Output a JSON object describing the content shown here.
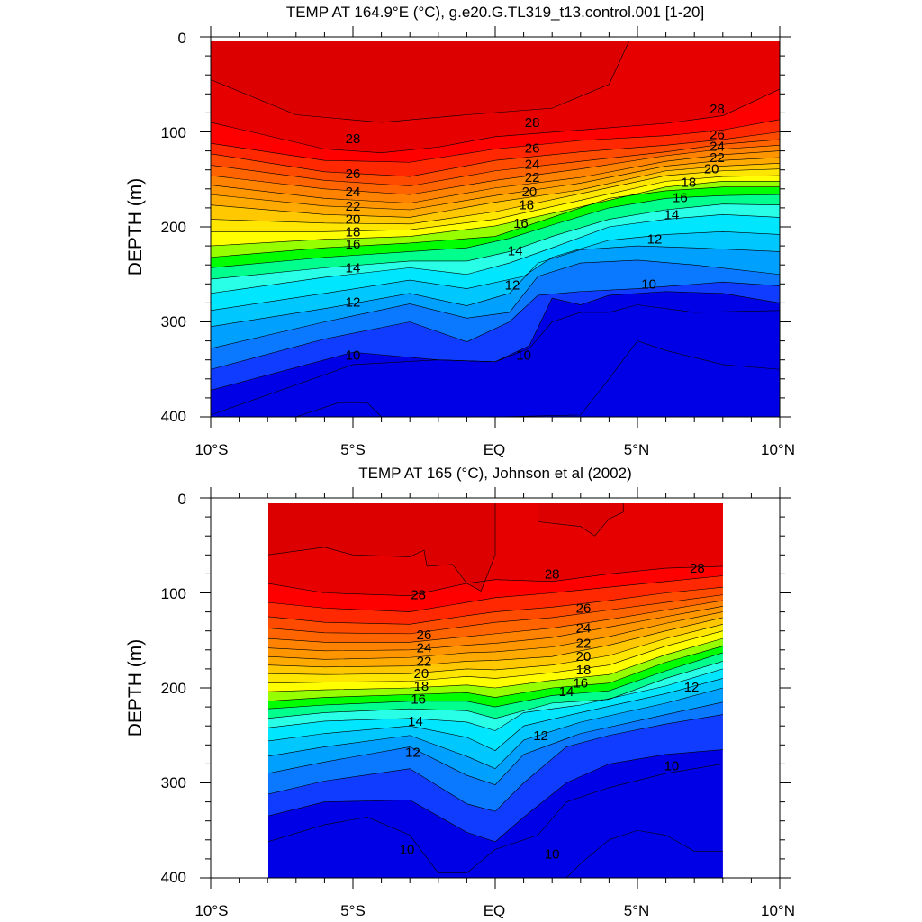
{
  "panels": [
    {
      "title": "TEMP AT 164.9°E (°C), g.e20.G.TL319_t13.control.001 [1-20]",
      "ylabel": "DEPTH (m)",
      "x_ticks": [
        "10°S",
        "5°S",
        "EQ",
        "5°N",
        "10°N"
      ],
      "y_ticks": [
        "0",
        "100",
        "200",
        "300",
        "400"
      ]
    },
    {
      "title": "TEMP AT 165 (°C), Johnson et al (2002)",
      "ylabel": "DEPTH (m)",
      "x_ticks": [
        "10°S",
        "5°S",
        "EQ",
        "5°N",
        "10°N"
      ],
      "y_ticks": [
        "0",
        "100",
        "200",
        "300",
        "400"
      ]
    }
  ],
  "chart_data": [
    {
      "type": "heatmap",
      "title": "TEMP AT 164.9°E (°C), g.e20.G.TL319_t13.control.001 [1-20]",
      "ylabel": "DEPTH (m)",
      "xlim": [
        -10,
        10
      ],
      "ylim": [
        400,
        0
      ],
      "x_tick_values": [
        -10,
        -5,
        0,
        5,
        10
      ],
      "y_tick_values": [
        0,
        100,
        200,
        300,
        400
      ],
      "data_extent_x": [
        -10,
        10
      ],
      "data_extent_y": [
        5,
        400
      ],
      "contour_levels": [
        9,
        10,
        11,
        12,
        13,
        14,
        15,
        16,
        17,
        18,
        19,
        20,
        21,
        22,
        23,
        24,
        25,
        26,
        27,
        28,
        29
      ],
      "color_fills": [
        "#0000e6",
        "#0f3cff",
        "#0a78ff",
        "#00a0ff",
        "#00c8ff",
        "#00e6ff",
        "#28ffe6",
        "#00ff8c",
        "#00ff00",
        "#96ff00",
        "#ffff00",
        "#ffe600",
        "#ffc800",
        "#ffaa00",
        "#ff9600",
        "#ff8200",
        "#ff6400",
        "#ff4b00",
        "#ff2800",
        "#ff0000",
        "#e60000",
        "#dc0000"
      ],
      "contour_labels": [
        {
          "value": 28,
          "lat": -5,
          "depth": 107
        },
        {
          "value": 26,
          "lat": -5,
          "depth": 144
        },
        {
          "value": 24,
          "lat": -5,
          "depth": 163
        },
        {
          "value": 22,
          "lat": -5,
          "depth": 178
        },
        {
          "value": 20,
          "lat": -5,
          "depth": 192
        },
        {
          "value": 18,
          "lat": -5,
          "depth": 205
        },
        {
          "value": 16,
          "lat": -5,
          "depth": 218
        },
        {
          "value": 14,
          "lat": -5,
          "depth": 243
        },
        {
          "value": 12,
          "lat": -5,
          "depth": 279
        },
        {
          "value": 10,
          "lat": -5,
          "depth": 335
        },
        {
          "value": 28,
          "lat": 1.3,
          "depth": 90
        },
        {
          "value": 26,
          "lat": 1.3,
          "depth": 117
        },
        {
          "value": 24,
          "lat": 1.3,
          "depth": 134
        },
        {
          "value": 22,
          "lat": 1.3,
          "depth": 148
        },
        {
          "value": 20,
          "lat": 1.2,
          "depth": 163
        },
        {
          "value": 18,
          "lat": 1.1,
          "depth": 177
        },
        {
          "value": 16,
          "lat": 0.9,
          "depth": 196
        },
        {
          "value": 14,
          "lat": 0.7,
          "depth": 225
        },
        {
          "value": 12,
          "lat": 0.6,
          "depth": 261
        },
        {
          "value": 10,
          "lat": 1.0,
          "depth": 335
        },
        {
          "value": 28,
          "lat": 7.8,
          "depth": 76
        },
        {
          "value": 26,
          "lat": 7.8,
          "depth": 103
        },
        {
          "value": 24,
          "lat": 7.8,
          "depth": 115
        },
        {
          "value": 22,
          "lat": 7.8,
          "depth": 127
        },
        {
          "value": 20,
          "lat": 7.6,
          "depth": 139
        },
        {
          "value": 18,
          "lat": 6.8,
          "depth": 153
        },
        {
          "value": 16,
          "lat": 6.5,
          "depth": 169
        },
        {
          "value": 14,
          "lat": 6.2,
          "depth": 187
        },
        {
          "value": 12,
          "lat": 5.6,
          "depth": 213
        },
        {
          "value": 10,
          "lat": 5.4,
          "depth": 260
        }
      ]
    },
    {
      "type": "heatmap",
      "title": "TEMP AT 165 (°C), Johnson et al (2002)",
      "ylabel": "DEPTH (m)",
      "xlim": [
        -10,
        10
      ],
      "ylim": [
        400,
        0
      ],
      "x_tick_values": [
        -10,
        -5,
        0,
        5,
        10
      ],
      "y_tick_values": [
        0,
        100,
        200,
        300,
        400
      ],
      "data_extent_x": [
        -8,
        8
      ],
      "data_extent_y": [
        5,
        400
      ],
      "contour_levels": [
        9,
        10,
        11,
        12,
        13,
        14,
        15,
        16,
        17,
        18,
        19,
        20,
        21,
        22,
        23,
        24,
        25,
        26,
        27,
        28,
        29
      ],
      "color_fills": [
        "#0000e6",
        "#0f3cff",
        "#0a78ff",
        "#00a0ff",
        "#00c8ff",
        "#00e6ff",
        "#28ffe6",
        "#00ff8c",
        "#00ff00",
        "#96ff00",
        "#ffff00",
        "#ffe600",
        "#ffc800",
        "#ffaa00",
        "#ff9600",
        "#ff8200",
        "#ff6400",
        "#ff4b00",
        "#ff2800",
        "#ff0000",
        "#e60000",
        "#dc0000"
      ],
      "contour_labels": [
        {
          "value": 28,
          "lat": -2.7,
          "depth": 102
        },
        {
          "value": 26,
          "lat": -2.5,
          "depth": 144
        },
        {
          "value": 24,
          "lat": -2.5,
          "depth": 158
        },
        {
          "value": 22,
          "lat": -2.5,
          "depth": 172
        },
        {
          "value": 20,
          "lat": -2.6,
          "depth": 185
        },
        {
          "value": 18,
          "lat": -2.6,
          "depth": 198
        },
        {
          "value": 16,
          "lat": -2.7,
          "depth": 212
        },
        {
          "value": 14,
          "lat": -2.8,
          "depth": 235
        },
        {
          "value": 12,
          "lat": -2.9,
          "depth": 268
        },
        {
          "value": 10,
          "lat": -3.1,
          "depth": 370
        },
        {
          "value": 28,
          "lat": 2.0,
          "depth": 80
        },
        {
          "value": 26,
          "lat": 3.1,
          "depth": 116
        },
        {
          "value": 24,
          "lat": 3.1,
          "depth": 137
        },
        {
          "value": 22,
          "lat": 3.1,
          "depth": 153
        },
        {
          "value": 20,
          "lat": 3.1,
          "depth": 167
        },
        {
          "value": 18,
          "lat": 3.1,
          "depth": 181
        },
        {
          "value": 16,
          "lat": 3.0,
          "depth": 195
        },
        {
          "value": 14,
          "lat": 2.5,
          "depth": 204
        },
        {
          "value": 12,
          "lat": 1.6,
          "depth": 250
        },
        {
          "value": 10,
          "lat": 2.0,
          "depth": 375
        },
        {
          "value": 28,
          "lat": 7.1,
          "depth": 74
        },
        {
          "value": 12,
          "lat": 6.9,
          "depth": 199
        },
        {
          "value": 10,
          "lat": 6.2,
          "depth": 282
        }
      ]
    }
  ]
}
